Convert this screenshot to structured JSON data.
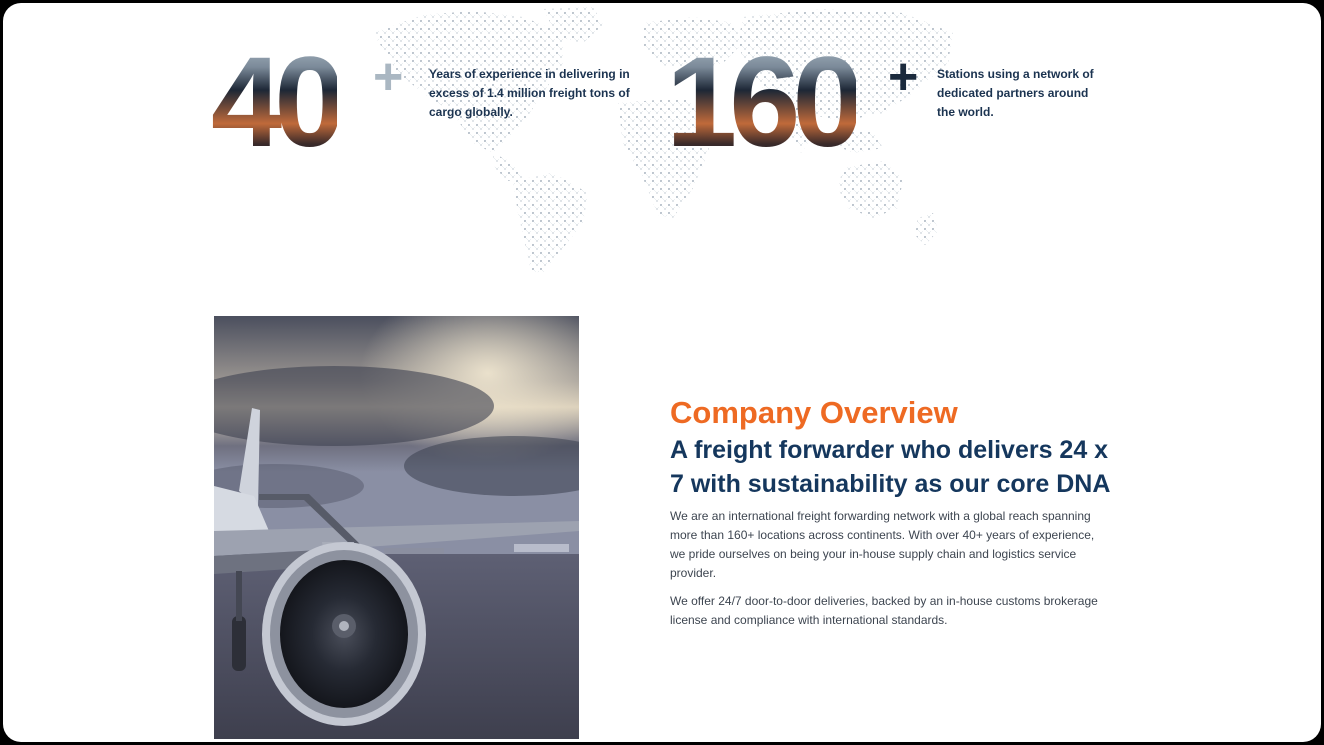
{
  "stats": [
    {
      "number": "40",
      "suffix": "+",
      "text": "Years of experience in delivering in excess of 1.4 million freight tons of cargo globally."
    },
    {
      "number": "160",
      "suffix": "+",
      "text": "Stations using a network of dedicated partners around the world."
    }
  ],
  "overview": {
    "eyebrow": "Company Overview",
    "headline": "A freight forwarder who delivers 24 x 7 with sustainability as our core DNA",
    "paragraph_1": "We are an international freight forwarding network with a global reach spanning more than 160+ locations across continents. With over 40+ years of experience, we pride ourselves on being your in-house supply chain and logistics service provider.",
    "paragraph_2": "We offer 24/7 door-to-door deliveries, backed by an in-house customs brokerage license and compliance with international standards."
  },
  "colors": {
    "accent_orange": "#ee6a23",
    "navy": "#15375d",
    "body_text": "#3d4550",
    "plus_grey": "#aab7c2",
    "plus_navy": "#1b2a3d"
  }
}
